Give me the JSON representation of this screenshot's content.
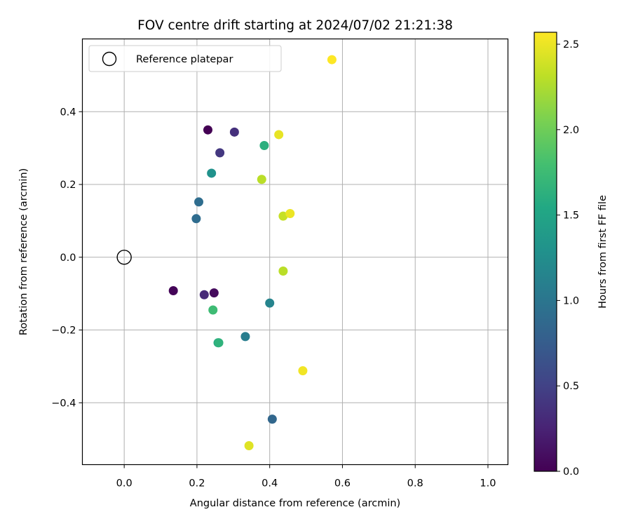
{
  "chart_data": {
    "type": "scatter",
    "title": "FOV centre drift starting at 2024/07/02 21:21:38",
    "xlabel": "Angular distance from reference (arcmin)",
    "ylabel": "Rotation from reference (arcmin)",
    "xlim": [
      -0.115,
      1.055
    ],
    "ylim": [
      -0.57,
      0.6
    ],
    "xticks": [
      0.0,
      0.2,
      0.4,
      0.6,
      0.8,
      1.0
    ],
    "xtick_labels": [
      "0.0",
      "0.2",
      "0.4",
      "0.6",
      "0.8",
      "1.0"
    ],
    "yticks": [
      -0.4,
      -0.2,
      0.0,
      0.2,
      0.4
    ],
    "ytick_labels": [
      "−0.4",
      "−0.2",
      "0.0",
      "0.2",
      "0.4"
    ],
    "grid": true,
    "legend": {
      "placement": "upper-left",
      "entries": [
        "Reference platepar"
      ]
    },
    "reference": {
      "x": 0.0,
      "y": 0.0
    },
    "colorbar": {
      "label": "Hours from first FF file",
      "colormap": "viridis",
      "range": [
        0.0,
        2.57
      ],
      "ticks": [
        0.0,
        0.5,
        1.0,
        1.5,
        2.0,
        2.5
      ],
      "tick_labels": [
        "0.0",
        "0.5",
        "1.0",
        "1.5",
        "2.0",
        "2.5"
      ]
    },
    "points": [
      {
        "x": 0.23,
        "y": 0.35,
        "c": 0.0
      },
      {
        "x": 0.135,
        "y": -0.092,
        "c": 0.03
      },
      {
        "x": 0.247,
        "y": -0.098,
        "c": 0.07
      },
      {
        "x": 0.22,
        "y": -0.103,
        "c": 0.3
      },
      {
        "x": 0.303,
        "y": 0.344,
        "c": 0.35
      },
      {
        "x": 0.263,
        "y": 0.287,
        "c": 0.42
      },
      {
        "x": 0.407,
        "y": -0.445,
        "c": 0.85
      },
      {
        "x": 0.205,
        "y": 0.152,
        "c": 0.92
      },
      {
        "x": 0.198,
        "y": 0.106,
        "c": 0.9
      },
      {
        "x": 0.333,
        "y": -0.218,
        "c": 1.08
      },
      {
        "x": 0.4,
        "y": -0.126,
        "c": 1.15
      },
      {
        "x": 0.24,
        "y": 0.231,
        "c": 1.3
      },
      {
        "x": 0.258,
        "y": -0.235,
        "c": 1.55
      },
      {
        "x": 0.26,
        "y": -0.235,
        "c": 1.65
      },
      {
        "x": 0.385,
        "y": 0.307,
        "c": 1.62
      },
      {
        "x": 0.244,
        "y": -0.145,
        "c": 1.75
      },
      {
        "x": 0.378,
        "y": 0.214,
        "c": 2.3
      },
      {
        "x": 0.437,
        "y": -0.038,
        "c": 2.3
      },
      {
        "x": 0.437,
        "y": 0.113,
        "c": 2.35
      },
      {
        "x": 0.343,
        "y": -0.518,
        "c": 2.45
      },
      {
        "x": 0.425,
        "y": 0.337,
        "c": 2.48
      },
      {
        "x": 0.456,
        "y": 0.12,
        "c": 2.5
      },
      {
        "x": 0.491,
        "y": -0.312,
        "c": 2.52
      },
      {
        "x": 0.571,
        "y": 0.543,
        "c": 2.57
      }
    ]
  }
}
